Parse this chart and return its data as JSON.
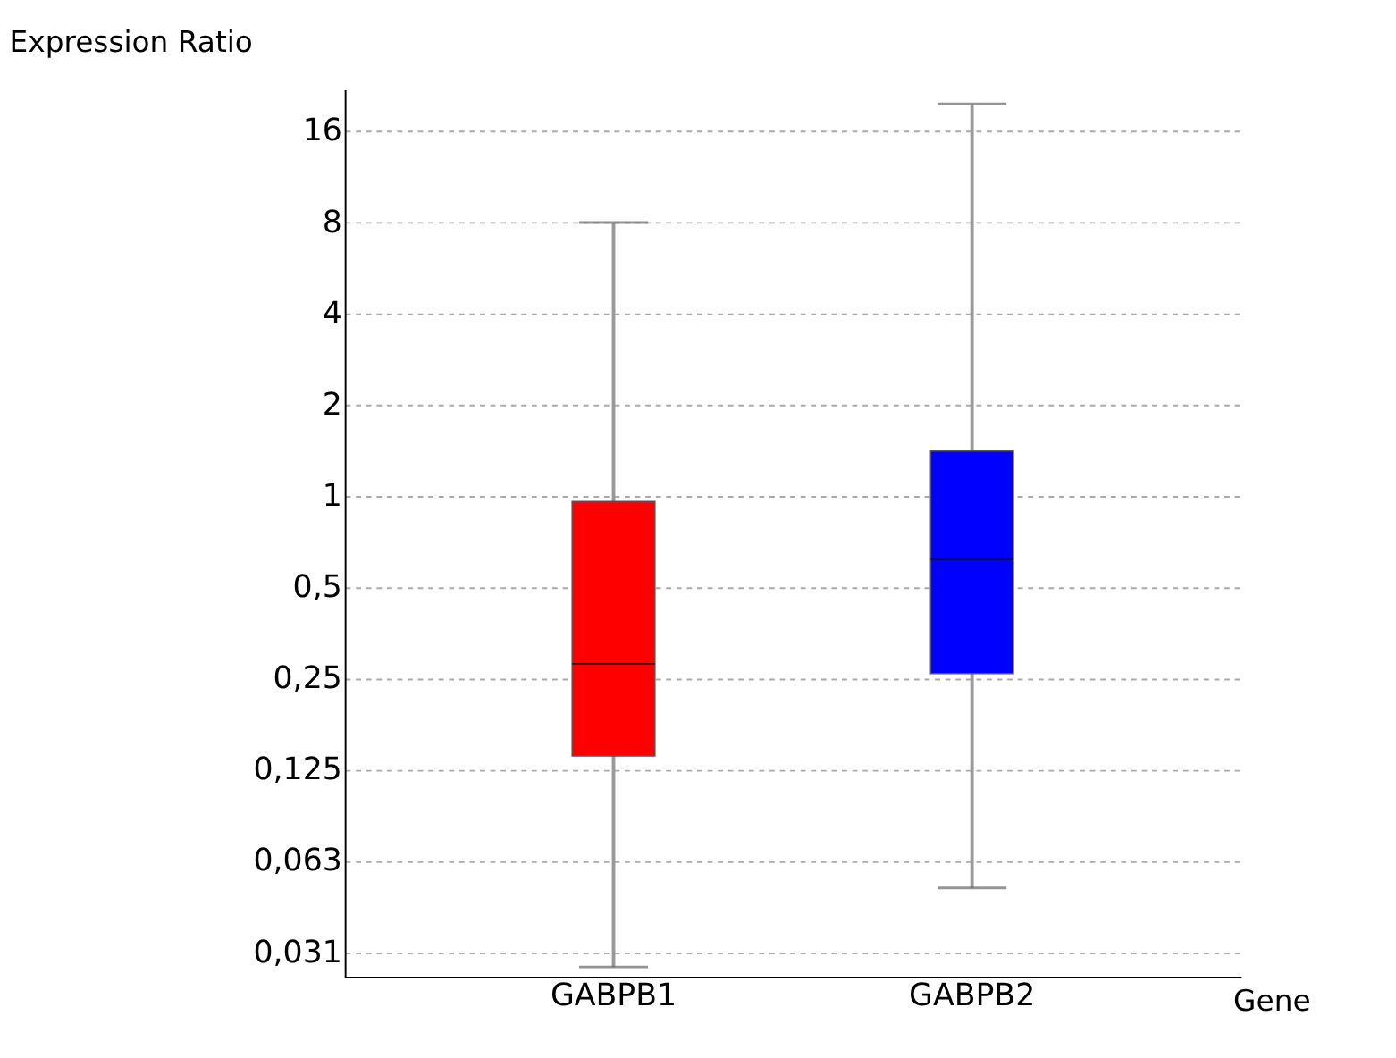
{
  "chart_data": {
    "type": "box",
    "xlabel": "Gene",
    "ylabel": "Expression Ratio",
    "log": true,
    "grid": "y",
    "categories": [
      "GABPB1",
      "GABPB2"
    ],
    "colors": [
      "#ff0000",
      "#0000ff"
    ],
    "boxes": [
      {
        "low": 0.028,
        "q1": 0.139,
        "median": 0.28,
        "q3": 0.96,
        "high": 8
      },
      {
        "low": 0.051,
        "q1": 0.26,
        "median": 0.62,
        "q3": 1.41,
        "high": 19.7
      }
    ],
    "ylim": [
      0.026,
      22
    ],
    "yticks": [
      {
        "value": 0.03125,
        "label": "0,031"
      },
      {
        "value": 0.0625,
        "label": "0,063"
      },
      {
        "value": 0.125,
        "label": "0,125"
      },
      {
        "value": 0.25,
        "label": "0,25"
      },
      {
        "value": 0.5,
        "label": "0,5"
      },
      1,
      2,
      4,
      8,
      16
    ]
  }
}
